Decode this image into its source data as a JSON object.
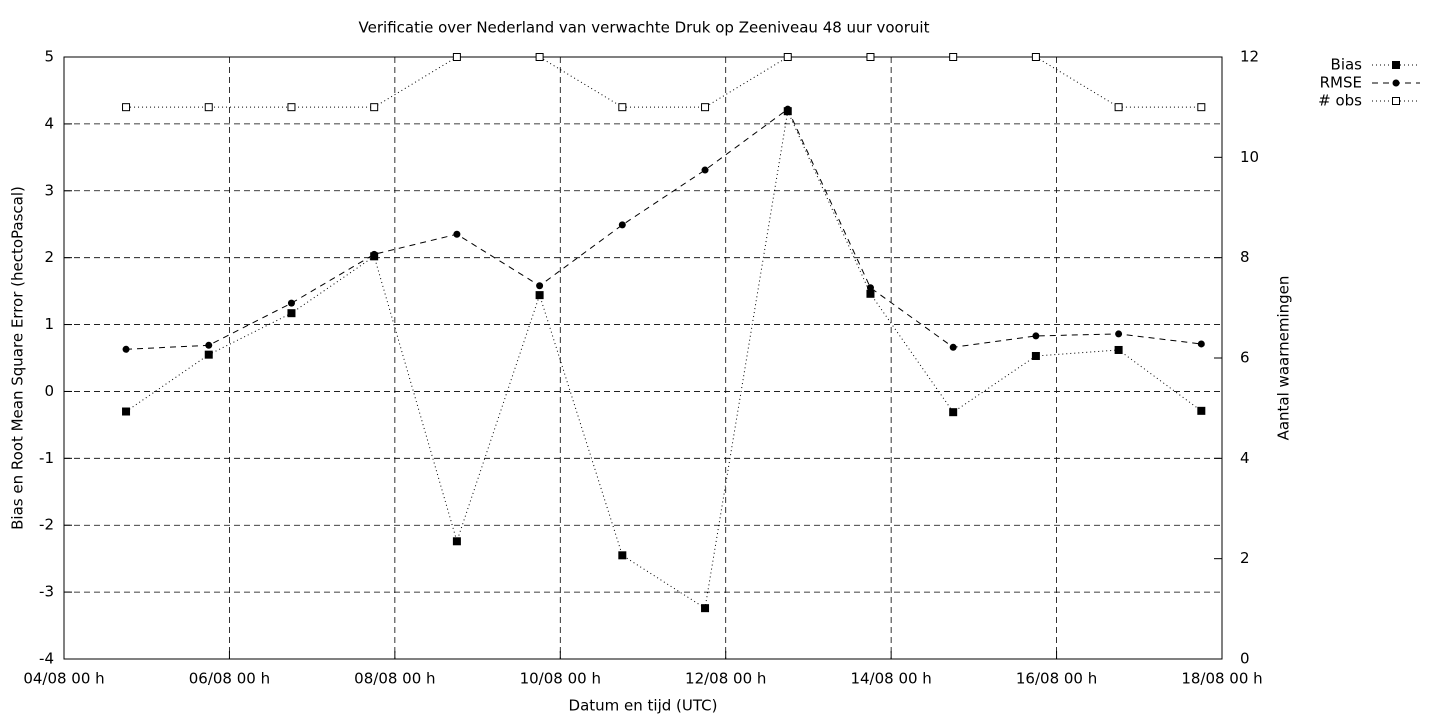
{
  "chart_data": {
    "type": "line",
    "title": "Verificatie over Nederland van verwachte Druk op Zeeniveau 48 uur vooruit",
    "xlabel": "Datum en tijd (UTC)",
    "ylabel": "Bias en Root Mean Square Error (hectoPascal)",
    "y2label": "Aantal waarnemingen",
    "x": [
      18,
      42,
      66,
      90,
      114,
      138,
      162,
      186,
      210,
      234,
      258,
      282,
      306,
      330
    ],
    "xlim": [
      0,
      336
    ],
    "xticks": [
      {
        "value": 0,
        "label": "04/08 00 h"
      },
      {
        "value": 48,
        "label": "06/08 00 h"
      },
      {
        "value": 96,
        "label": "08/08 00 h"
      },
      {
        "value": 144,
        "label": "10/08 00 h"
      },
      {
        "value": 192,
        "label": "12/08 00 h"
      },
      {
        "value": 240,
        "label": "14/08 00 h"
      },
      {
        "value": 288,
        "label": "16/08 00 h"
      },
      {
        "value": 336,
        "label": "18/08 00 h"
      }
    ],
    "ylim": [
      -4,
      5
    ],
    "yticks": [
      -4,
      -3,
      -2,
      -1,
      0,
      1,
      2,
      3,
      4,
      5
    ],
    "y2lim": [
      0,
      12
    ],
    "y2ticks": [
      0,
      2,
      4,
      6,
      8,
      10,
      12
    ],
    "grid": true,
    "legend": "top-right",
    "series": [
      {
        "name": "Bias",
        "color": "#000000",
        "marker": "filled-square",
        "dash": "dotted",
        "values": [
          -0.3,
          0.55,
          1.17,
          2.02,
          -2.24,
          1.44,
          -2.45,
          -3.24,
          4.19,
          1.46,
          -0.31,
          0.53,
          0.62,
          -0.29
        ]
      },
      {
        "name": "RMSE",
        "color": "#000000",
        "marker": "filled-circle",
        "dash": "dashed",
        "values": [
          0.63,
          0.69,
          1.32,
          2.05,
          2.35,
          1.58,
          2.49,
          3.31,
          4.22,
          1.55,
          0.66,
          0.83,
          0.86,
          0.71
        ]
      },
      {
        "name": "# obs",
        "color": "#000000",
        "marker": "open-square",
        "dash": "dotted",
        "axis": "y2",
        "values": [
          11,
          11,
          11,
          11,
          12,
          12,
          11,
          11,
          12,
          12,
          12,
          12,
          11,
          11
        ]
      }
    ]
  }
}
